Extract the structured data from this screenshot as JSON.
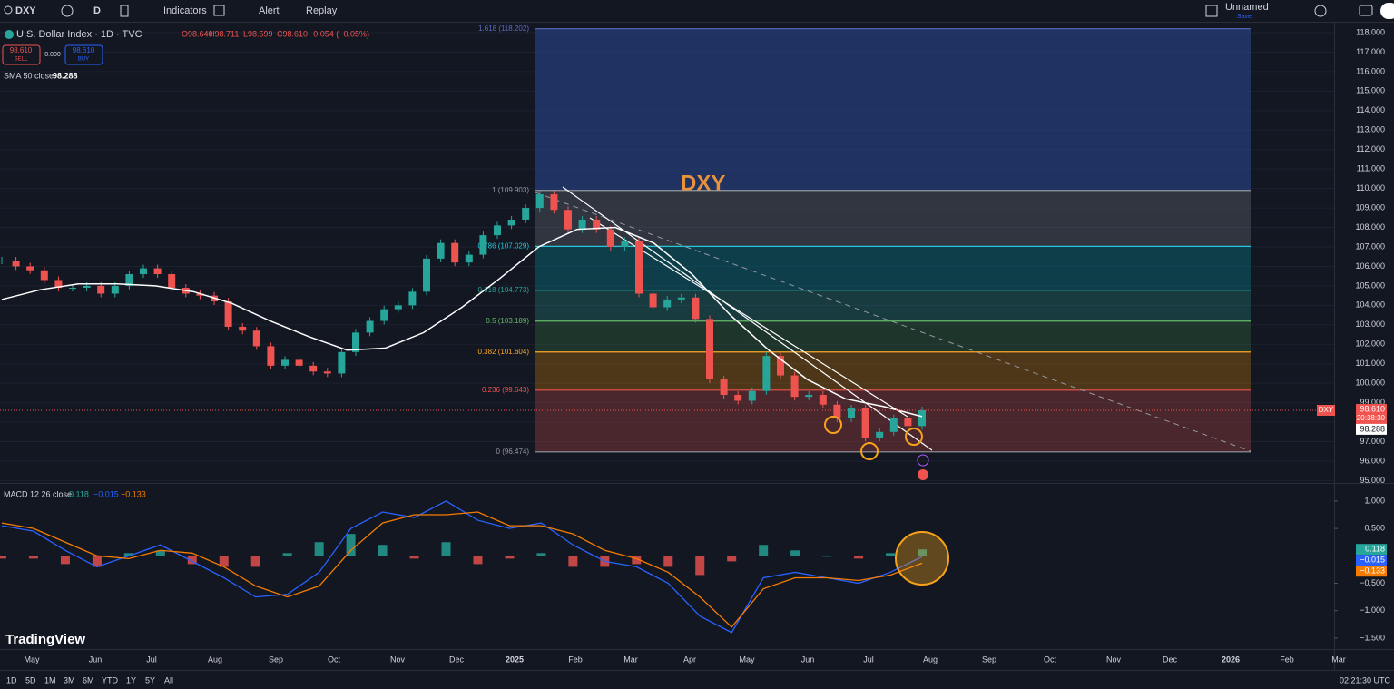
{
  "toolbar": {
    "symbol": "DXY",
    "interval": "D",
    "indicators": "Indicators",
    "alert": "Alert",
    "replay": "Replay",
    "layout_name": "Unnamed",
    "save": "Save"
  },
  "legend": {
    "title": "U.S. Dollar Index · 1D · TVC",
    "open": "O98.640",
    "high": "H98.711",
    "low": "L98.599",
    "close": "C98.610",
    "change": "−0.054 (−0.05%)",
    "sell_price": "98.610",
    "sell": "SELL",
    "spread": "0.000",
    "buy_price": "98.610",
    "buy": "BUY",
    "sma_legend": "SMA 50 close",
    "sma_value": "98.288",
    "macd_legend": "MACD 12 26 close",
    "macd_hist": "0.118",
    "macd_value": "−0.015",
    "macd_signal": "−0.133"
  },
  "chart_data": [
    {
      "type": "candlestick",
      "annotation": "DXY",
      "ylim": [
        94.88,
        118.56
      ],
      "yticks": [
        {
          "value": 95,
          "label": "95.000"
        },
        {
          "value": 96,
          "label": "96.000"
        },
        {
          "value": 97,
          "label": "97.000"
        },
        {
          "value": 98,
          "label": "98.000"
        },
        {
          "value": 99,
          "label": "99.000"
        },
        {
          "value": 100,
          "label": "100.000"
        },
        {
          "value": 101,
          "label": "101.000"
        },
        {
          "value": 102,
          "label": "102.000"
        },
        {
          "value": 103,
          "label": "103.000"
        },
        {
          "value": 104,
          "label": "104.000"
        },
        {
          "value": 105,
          "label": "105.000"
        },
        {
          "value": 106,
          "label": "106.000"
        },
        {
          "value": 107,
          "label": "107.000"
        },
        {
          "value": 108,
          "label": "108.000"
        },
        {
          "value": 109,
          "label": "109.000"
        },
        {
          "value": 110,
          "label": "110.000"
        },
        {
          "value": 111,
          "label": "111.000"
        },
        {
          "value": 112,
          "label": "112.000"
        },
        {
          "value": 113,
          "label": "113.000"
        },
        {
          "value": 114,
          "label": "114.000"
        },
        {
          "value": 115,
          "label": "115.000"
        },
        {
          "value": 116,
          "label": "116.000"
        },
        {
          "value": 117,
          "label": "117.000"
        },
        {
          "value": 118,
          "label": "118.000"
        }
      ],
      "categories": [
        "May",
        "Jun",
        "Jul",
        "Aug",
        "Sep",
        "Oct",
        "Nov",
        "Dec",
        "2025",
        "Feb",
        "Mar",
        "Apr",
        "May",
        "Jun",
        "Jul",
        "Aug",
        "Sep",
        "Oct",
        "Nov",
        "Dec",
        "2026",
        "Feb",
        "Mar"
      ],
      "close": [
        106.3,
        106.0,
        105.8,
        105.3,
        104.9,
        104.9,
        105.0,
        104.6,
        105.0,
        105.6,
        105.9,
        105.6,
        104.9,
        104.6,
        104.5,
        104.2,
        102.9,
        102.7,
        101.9,
        100.9,
        101.2,
        100.9,
        100.6,
        100.5,
        101.6,
        102.6,
        103.2,
        103.8,
        104.0,
        104.7,
        106.4,
        107.2,
        106.2,
        106.6,
        107.6,
        108.1,
        108.4,
        109.0,
        109.7,
        108.9,
        107.9,
        108.4,
        107.9,
        107.0,
        107.3,
        104.6,
        103.9,
        104.3,
        104.4,
        103.3,
        100.2,
        99.4,
        99.1,
        99.6,
        101.4,
        100.4,
        99.3,
        99.4,
        98.9,
        98.2,
        98.7,
        97.2,
        97.5,
        98.2,
        97.8,
        98.61
      ],
      "sma": [
        104.3,
        104.8,
        105.1,
        105.1,
        105.0,
        104.7,
        104.1,
        103.2,
        102.4,
        101.7,
        101.8,
        102.6,
        103.9,
        105.4,
        107.0,
        107.9,
        108.0,
        107.2,
        105.6,
        103.5,
        101.7,
        100.2,
        99.2,
        98.8,
        98.288
      ],
      "last_price": {
        "value": 98.61,
        "label": "98.610"
      },
      "countdown": "20:38:30",
      "sma_badge": {
        "value": 98.288,
        "label": "98.288"
      },
      "symbol_badge": "DXY",
      "fib_levels": [
        {
          "value": 118.202,
          "label": "1.618 (118.202)",
          "color": "#5c6bc0",
          "fill": "rgba(41,72,150,0.55)"
        },
        {
          "value": 109.903,
          "label": "1 (109.903)",
          "color": "#9598a1",
          "fill": "rgba(120,123,134,0.3)"
        },
        {
          "value": 107.029,
          "label": "0.786 (107.029)",
          "color": "#26c6da",
          "fill": "rgba(0,151,167,0.3)"
        },
        {
          "value": 104.773,
          "label": "0.618 (104.773)",
          "color": "#26a69a",
          "fill": "rgba(38,166,154,0.25)"
        },
        {
          "value": 103.189,
          "label": "0.5 (103.189)",
          "color": "#66bb6a",
          "fill": "rgba(76,175,80,0.2)"
        },
        {
          "value": 101.604,
          "label": "0.382 (101.604)",
          "color": "#ffa726",
          "fill": "rgba(255,152,0,0.25)"
        },
        {
          "value": 99.643,
          "label": "0.236 (99.643)",
          "color": "#ef5350",
          "fill": "rgba(239,83,80,0.25)"
        },
        {
          "value": 96.474,
          "label": "0 (96.474)",
          "color": "#9598a1"
        }
      ]
    },
    {
      "type": "macd",
      "ylim": [
        -1.7,
        1.33
      ],
      "yticks": [
        {
          "value": 1,
          "label": "1.000"
        },
        {
          "value": 0.5,
          "label": "0.500"
        },
        {
          "value": -0.5,
          "label": "−0.500"
        },
        {
          "value": -1,
          "label": "−1.000"
        },
        {
          "value": -1.5,
          "label": "−1.500"
        }
      ],
      "macd": [
        0.55,
        0.45,
        0.1,
        -0.2,
        0.0,
        0.2,
        -0.1,
        -0.4,
        -0.75,
        -0.7,
        -0.3,
        0.5,
        0.8,
        0.7,
        1.0,
        0.65,
        0.5,
        0.6,
        0.2,
        -0.1,
        -0.2,
        -0.5,
        -1.1,
        -1.4,
        -0.4,
        -0.3,
        -0.4,
        -0.5,
        -0.3,
        -0.015
      ],
      "signal": [
        0.6,
        0.5,
        0.25,
        0.0,
        -0.05,
        0.1,
        0.05,
        -0.2,
        -0.55,
        -0.75,
        -0.55,
        0.1,
        0.6,
        0.75,
        0.75,
        0.8,
        0.55,
        0.55,
        0.4,
        0.1,
        -0.05,
        -0.3,
        -0.75,
        -1.3,
        -0.6,
        -0.4,
        -0.4,
        -0.45,
        -0.35,
        -0.133
      ],
      "badges": [
        {
          "value": 0.118,
          "label": "0.118",
          "color": "#26a69a"
        },
        {
          "value": -0.015,
          "label": "−0.015",
          "color": "#2962ff"
        },
        {
          "value": -0.133,
          "label": "−0.133",
          "color": "#f57c00"
        }
      ]
    }
  ],
  "bottom_bar": {
    "ranges": [
      "1D",
      "5D",
      "1M",
      "3M",
      "6M",
      "YTD",
      "1Y",
      "5Y",
      "All"
    ],
    "clock": "02:21:30 UTC"
  },
  "brand": "TradingView"
}
